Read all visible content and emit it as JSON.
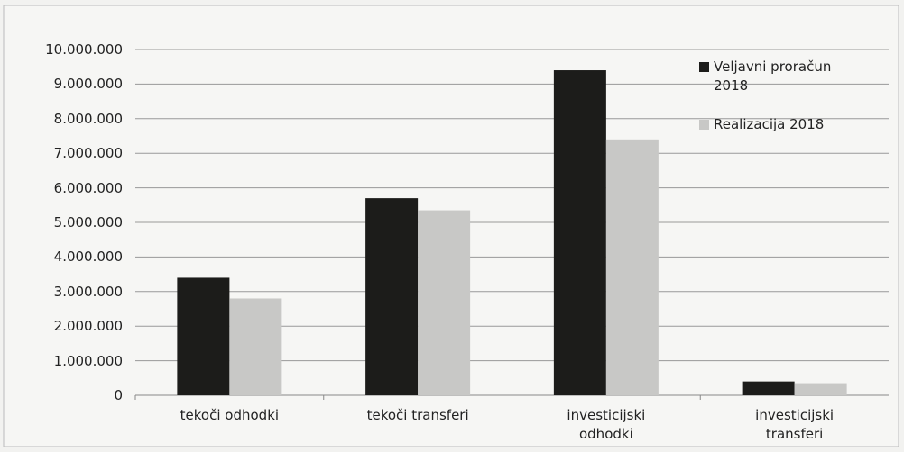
{
  "chart_data": {
    "type": "bar",
    "categories": [
      "tekoči odhodki",
      "tekoči transferi",
      "investicijski odhodki",
      "investicijski transferi"
    ],
    "series": [
      {
        "name": "Veljavni proračun 2018",
        "color": "#1c1c1a",
        "values": [
          3400000,
          5700000,
          9400000,
          400000
        ]
      },
      {
        "name": "Realizacija 2018",
        "color": "#c8c8c6",
        "values": [
          2800000,
          5350000,
          7400000,
          350000
        ]
      }
    ],
    "ylim": [
      0,
      10000000
    ],
    "yticks": [
      0,
      {
        "value": 1000000,
        "label": "1.000.000"
      },
      {
        "value": 2000000,
        "label": "2.000.000"
      },
      {
        "value": 3000000,
        "label": "3.000.000"
      },
      {
        "value": 4000000,
        "label": "4.000.000"
      },
      {
        "value": 5000000,
        "label": "5.000.000"
      },
      {
        "value": 6000000,
        "label": "6.000.000"
      },
      {
        "value": 7000000,
        "label": "7.000.000"
      },
      {
        "value": 8000000,
        "label": "8.000.000"
      },
      {
        "value": 9000000,
        "label": "9.000.000"
      },
      {
        "value": 10000000,
        "label": "10.000.000"
      }
    ],
    "grid": true,
    "legend": "top-right"
  }
}
